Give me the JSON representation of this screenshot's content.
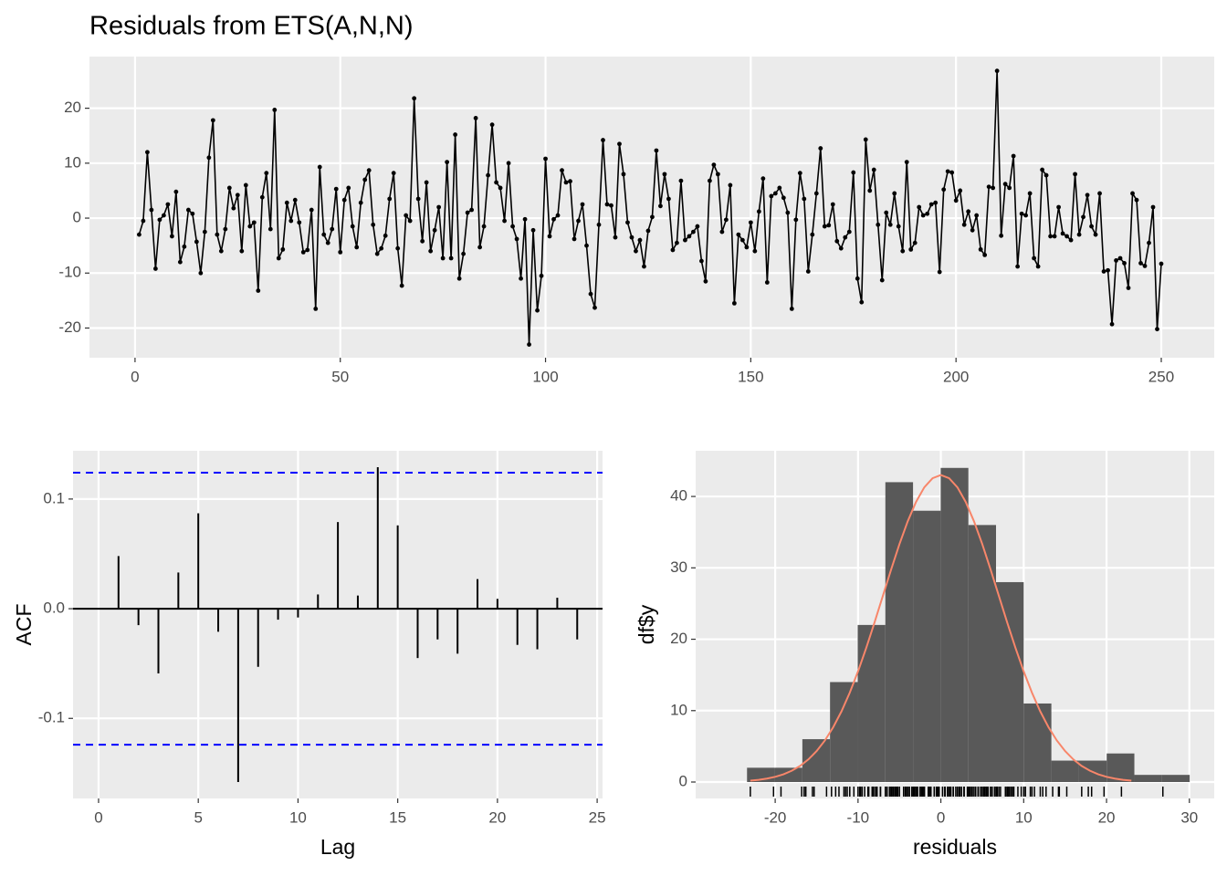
{
  "chart_data": [
    {
      "type": "line",
      "title": "Residuals from ETS(A,N,N)",
      "color": "#000000",
      "grid": true,
      "x": [
        1,
        2,
        3,
        4,
        5,
        6,
        7,
        8,
        9,
        10,
        11,
        12,
        13,
        14,
        15,
        16,
        17,
        18,
        19,
        20,
        21,
        22,
        23,
        24,
        25,
        26,
        27,
        28,
        29,
        30,
        31,
        32,
        33,
        34,
        35,
        36,
        37,
        38,
        39,
        40,
        41,
        42,
        43,
        44,
        45,
        46,
        47,
        48,
        49,
        50,
        51,
        52,
        53,
        54,
        55,
        56,
        57,
        58,
        59,
        60,
        61,
        62,
        63,
        64,
        65,
        66,
        67,
        68,
        69,
        70,
        71,
        72,
        73,
        74,
        75,
        76,
        77,
        78,
        79,
        80,
        81,
        82,
        83,
        84,
        85,
        86,
        87,
        88,
        89,
        90,
        91,
        92,
        93,
        94,
        95,
        96,
        97,
        98,
        99,
        100,
        101,
        102,
        103,
        104,
        105,
        106,
        107,
        108,
        109,
        110,
        111,
        112,
        113,
        114,
        115,
        116,
        117,
        118,
        119,
        120,
        121,
        122,
        123,
        124,
        125,
        126,
        127,
        128,
        129,
        130,
        131,
        132,
        133,
        134,
        135,
        136,
        137,
        138,
        139,
        140,
        141,
        142,
        143,
        144,
        145,
        146,
        147,
        148,
        149,
        150,
        151,
        152,
        153,
        154,
        155,
        156,
        157,
        158,
        159,
        160,
        161,
        162,
        163,
        164,
        165,
        166,
        167,
        168,
        169,
        170,
        171,
        172,
        173,
        174,
        175,
        176,
        177,
        178,
        179,
        180,
        181,
        182,
        183,
        184,
        185,
        186,
        187,
        188,
        189,
        190,
        191,
        192,
        193,
        194,
        195,
        196,
        197,
        198,
        199,
        200,
        201,
        202,
        203,
        204,
        205,
        206,
        207,
        208,
        209,
        210,
        211,
        212,
        213,
        214,
        215,
        216,
        217,
        218,
        219,
        220,
        221,
        222,
        223,
        224,
        225,
        226,
        227,
        228,
        229,
        230,
        231,
        232,
        233,
        234,
        235,
        236,
        237,
        238,
        239,
        240,
        241,
        242,
        243,
        244,
        245,
        246,
        247,
        248,
        249,
        250
      ],
      "values": [
        -3,
        -0.5,
        12,
        1.5,
        -9.2,
        -0.3,
        0.5,
        2.5,
        -3.3,
        4.8,
        -8,
        -5.2,
        1.5,
        0.8,
        -4.3,
        -10,
        -2.5,
        11,
        17.8,
        -3,
        -6,
        -2,
        5.5,
        1.8,
        4.2,
        -6,
        6,
        -1.5,
        -0.8,
        -13.2,
        3.8,
        8.2,
        -2,
        19.7,
        -7.3,
        -5.7,
        2.8,
        -0.5,
        3.3,
        -0.8,
        -6.2,
        -5.8,
        1.5,
        -16.5,
        9.3,
        -3,
        -4.5,
        -2,
        5.3,
        -6.2,
        3.3,
        5.5,
        -1.5,
        -5.3,
        2.8,
        7,
        8.7,
        -1.2,
        -6.5,
        -5.5,
        -3.2,
        3.5,
        8.2,
        -5.5,
        -12.3,
        0.5,
        -0.5,
        21.8,
        3.5,
        -4.2,
        6.5,
        -6,
        -2.2,
        2,
        -7.3,
        10.2,
        -7.3,
        15.2,
        -11,
        -6.5,
        1,
        1.5,
        18.2,
        -5.3,
        -1.5,
        7.8,
        17,
        6.5,
        5.5,
        -0.5,
        10,
        -1.5,
        -3.8,
        -11,
        -0.2,
        -23,
        -2.2,
        -16.8,
        -10.5,
        10.8,
        -3.3,
        -0.2,
        0.5,
        8.7,
        6.5,
        6.7,
        -3.8,
        -0.5,
        2.5,
        -5,
        -13.8,
        -16.3,
        -1.2,
        14.2,
        2.5,
        2.3,
        -3.5,
        13.5,
        8,
        -0.8,
        -3.5,
        -6,
        -4,
        -8.8,
        -2.3,
        0.2,
        12.3,
        2.2,
        8,
        3.5,
        -5.8,
        -4.5,
        6.8,
        -4,
        -3.3,
        -2.5,
        -1.5,
        -7.8,
        -11.5,
        6.8,
        9.7,
        8,
        -2.5,
        -0.3,
        6,
        -15.5,
        -3,
        -4,
        -5.3,
        -0.8,
        -6,
        1.2,
        7.2,
        -11.7,
        4,
        4.5,
        5.5,
        3.7,
        1,
        -16.5,
        -0.3,
        8.2,
        3.5,
        -9.7,
        -3,
        4.5,
        12.7,
        -1.5,
        -1.3,
        2.5,
        -4.2,
        -5.5,
        -3.5,
        -2.5,
        8.3,
        -11,
        -15.3,
        14.3,
        5,
        8.8,
        -1.2,
        -11.3,
        1,
        -1.2,
        4.5,
        -1.5,
        -6,
        10.2,
        -5.7,
        -4.5,
        2,
        0.5,
        0.8,
        2.5,
        2.8,
        -9.8,
        5.2,
        8.5,
        8.3,
        3.2,
        5,
        -1.2,
        1.2,
        -2.2,
        0.5,
        -5.7,
        -6.7,
        5.7,
        5.5,
        26.8,
        -3.2,
        6.2,
        5.5,
        11.3,
        -8.8,
        0.8,
        0.5,
        4.5,
        -7.3,
        -8.8,
        8.8,
        7.8,
        -3.3,
        -3.3,
        2,
        -2.8,
        -3.3,
        -4,
        8,
        -3,
        0.2,
        4.2,
        -1.5,
        -3,
        4.5,
        -9.7,
        -9.5,
        -19.3,
        -7.7,
        -7.3,
        -8.2,
        -12.7,
        4.5,
        3.3,
        -8.2,
        -8.7,
        -4.5,
        2,
        -20.2,
        -8.3
      ],
      "xlim": [
        -11.1,
        262.9
      ],
      "ylim": [
        -25.4,
        29.4
      ],
      "xticks": [
        0,
        50,
        100,
        150,
        200,
        250
      ],
      "yticks": [
        -20,
        -10,
        0,
        10,
        20
      ]
    },
    {
      "type": "acf",
      "xlabel": "Lag",
      "ylabel": "ACF",
      "color": "#000000",
      "grid": true,
      "x": [
        1,
        2,
        3,
        4,
        5,
        6,
        7,
        8,
        9,
        10,
        11,
        12,
        13,
        14,
        15,
        16,
        17,
        18,
        19,
        20,
        21,
        22,
        23,
        24
      ],
      "values": [
        0.048,
        -0.015,
        -0.059,
        0.033,
        0.087,
        -0.021,
        -0.158,
        -0.053,
        -0.01,
        -0.008,
        0.013,
        0.079,
        0.012,
        0.129,
        0.076,
        -0.045,
        -0.028,
        -0.041,
        0.027,
        0.009,
        -0.033,
        -0.037,
        0.01,
        -0.028
      ],
      "conf_limits": [
        0.124,
        -0.124
      ],
      "conf_color": "#0000ff",
      "xlim": [
        -1.28,
        25.27
      ],
      "ylim": [
        -0.173,
        0.144
      ],
      "xticks": [
        0,
        5,
        10,
        15,
        20,
        25
      ],
      "yticks": [
        -0.1,
        {
          "value": 0,
          "label": "0.0"
        },
        0.1
      ]
    },
    {
      "type": "histogram",
      "xlabel": "residuals",
      "ylabel": "df$y",
      "color": "#595959",
      "grid": true,
      "rug": true,
      "bins": [
        -23.4,
        -20.06,
        -16.72,
        -13.38,
        -10.04,
        -6.7,
        -3.36,
        -0.02,
        3.32,
        6.66,
        10.0,
        13.34,
        16.68,
        20.02,
        23.36,
        26.7,
        30.04
      ],
      "counts": [
        2,
        2,
        6,
        14,
        22,
        42,
        38,
        44,
        36,
        28,
        11,
        3,
        3,
        4,
        1,
        1
      ],
      "curve": {
        "color": "#f8866a",
        "x": [
          -23,
          -22,
          -21,
          -20,
          -19,
          -18,
          -17,
          -16,
          -15,
          -14,
          -13,
          -12,
          -11,
          -10,
          -9,
          -8,
          -7,
          -6,
          -5,
          -4,
          -3,
          -2,
          -1,
          0,
          1,
          2,
          3,
          4,
          5,
          6,
          7,
          8,
          9,
          10,
          11,
          12,
          13,
          14,
          15,
          16,
          17,
          18,
          19,
          20,
          21,
          22,
          23
        ],
        "y": [
          0.19,
          0.31,
          0.48,
          0.73,
          1.08,
          1.58,
          2.25,
          3.16,
          4.33,
          5.82,
          7.67,
          9.89,
          12.51,
          15.5,
          18.82,
          22.38,
          26.08,
          29.78,
          33.32,
          36.52,
          39.23,
          41.28,
          42.56,
          43,
          42.56,
          41.28,
          39.23,
          36.52,
          33.32,
          29.78,
          26.08,
          22.38,
          18.82,
          15.5,
          12.51,
          9.89,
          7.67,
          5.82,
          4.33,
          3.16,
          2.25,
          1.58,
          1.08,
          0.73,
          0.48,
          0.31,
          0.19
        ]
      },
      "xlim": [
        -29.6,
        33.0
      ],
      "ylim": [
        -2.3,
        46.4
      ],
      "xticks": [
        -20,
        -10,
        0,
        10,
        20,
        30
      ],
      "yticks": [
        0,
        10,
        20,
        30,
        40
      ]
    }
  ]
}
